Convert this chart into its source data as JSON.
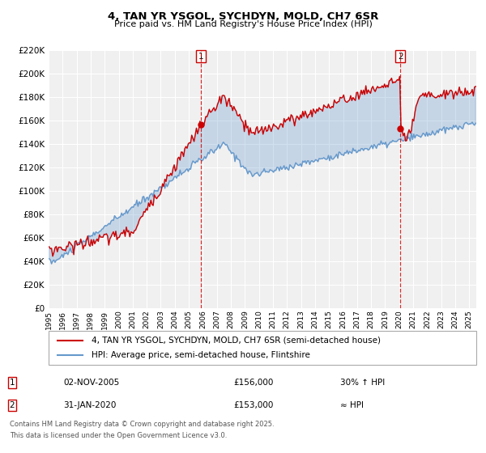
{
  "title": "4, TAN YR YSGOL, SYCHDYN, MOLD, CH7 6SR",
  "subtitle": "Price paid vs. HM Land Registry's House Price Index (HPI)",
  "legend_line1": "4, TAN YR YSGOL, SYCHDYN, MOLD, CH7 6SR (semi-detached house)",
  "legend_line2": "HPI: Average price, semi-detached house, Flintshire",
  "marker1_date": "02-NOV-2005",
  "marker1_price": 156000,
  "marker1_label": "30% ↑ HPI",
  "marker2_date": "31-JAN-2020",
  "marker2_price": 153000,
  "marker2_label": "≈ HPI",
  "footnote1": "Contains HM Land Registry data © Crown copyright and database right 2025.",
  "footnote2": "This data is licensed under the Open Government Licence v3.0.",
  "xmin": 1995.0,
  "xmax": 2025.5,
  "ymin": 0,
  "ymax": 220000,
  "vline1_x": 2005.84,
  "vline2_x": 2020.08,
  "red_color": "#cc0000",
  "blue_color": "#6699cc",
  "background_color": "#f0f0f0",
  "grid_color": "#ffffff"
}
